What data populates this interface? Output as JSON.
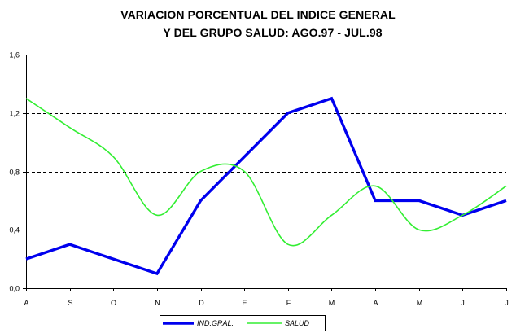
{
  "chart_data": {
    "type": "line",
    "title": "VARIACION PORCENTUAL DEL INDICE GENERAL",
    "subtitle": "Y DEL GRUPO SALUD: AGO.97 - JUL.98",
    "xlabel": "",
    "ylabel": "",
    "categories": [
      "A",
      "S",
      "O",
      "N",
      "D",
      "E",
      "F",
      "M",
      "A",
      "M",
      "J",
      "J"
    ],
    "ylim": [
      0,
      1.6
    ],
    "yticks": [
      "0,0",
      "0,4",
      "0,8",
      "1,2",
      "1,6"
    ],
    "ytick_values": [
      0,
      0.4,
      0.8,
      1.2,
      1.6
    ],
    "grid": "dashed horizontal at 0,4 0,8 1,2",
    "legend_position": "bottom",
    "series": [
      {
        "name": "IND.GRAL.",
        "color": "#0000ee",
        "style": "straight",
        "values": [
          0.2,
          0.3,
          0.2,
          0.1,
          0.6,
          0.9,
          1.2,
          1.3,
          0.6,
          0.6,
          0.5,
          0.6
        ]
      },
      {
        "name": "SALUD",
        "color": "#33ee33",
        "style": "smooth",
        "values": [
          1.3,
          1.1,
          0.9,
          0.5,
          0.8,
          0.8,
          0.3,
          0.5,
          0.7,
          0.4,
          0.5,
          0.7
        ]
      }
    ]
  }
}
